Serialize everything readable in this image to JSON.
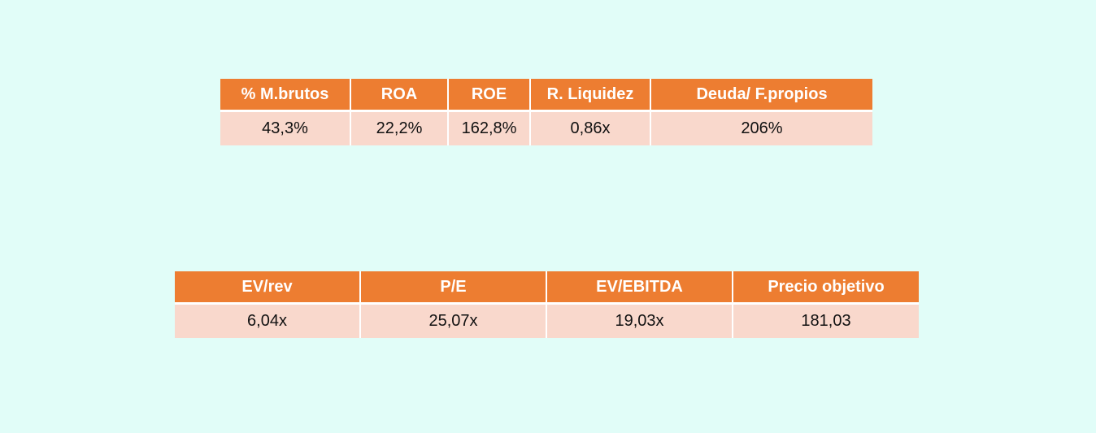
{
  "tables": [
    {
      "header": [
        "% M.brutos",
        "ROA",
        "ROE",
        "R. Liquidez",
        "Deuda/ F.propios"
      ],
      "rows": [
        [
          "43,3%",
          "22,2%",
          "162,8%",
          "0,86x",
          "206%"
        ]
      ]
    },
    {
      "header": [
        "EV/rev",
        "P/E",
        "EV/EBITDA",
        "Precio objetivo"
      ],
      "rows": [
        [
          "6,04x",
          "25,07x",
          "19,03x",
          "181,03"
        ]
      ]
    }
  ]
}
